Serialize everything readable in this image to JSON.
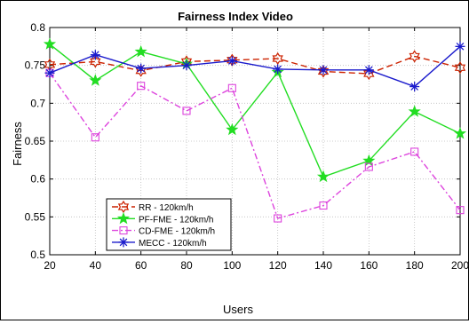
{
  "chart_data": {
    "type": "line",
    "title": "Fairness Index Video",
    "xlabel": "Users",
    "ylabel": "Fairness",
    "x": [
      20,
      40,
      60,
      80,
      100,
      120,
      140,
      160,
      180,
      200
    ],
    "xlim": [
      20,
      200
    ],
    "ylim": [
      0.5,
      0.8
    ],
    "xticks": [
      "20",
      "40",
      "60",
      "80",
      "100",
      "120",
      "140",
      "160",
      "180",
      "200"
    ],
    "yticks": [
      "0.5",
      "0.55",
      "0.6",
      "0.65",
      "0.7",
      "0.75",
      "0.8"
    ],
    "grid": true,
    "legend_position": "bottom-left",
    "series": [
      {
        "name": "RR - 120km/h",
        "color": "#cc2200",
        "dash": "dash",
        "marker": "hexagram",
        "values": [
          0.751,
          0.755,
          0.743,
          0.755,
          0.757,
          0.759,
          0.742,
          0.739,
          0.762,
          0.747
        ]
      },
      {
        "name": "PF-FME - 120km/h",
        "color": "#22dd22",
        "dash": "solid",
        "marker": "pentagram",
        "values": [
          0.778,
          0.73,
          0.768,
          0.752,
          0.665,
          0.741,
          0.603,
          0.624,
          0.689,
          0.66
        ]
      },
      {
        "name": "CD-FME - 120km/h",
        "color": "#dd44dd",
        "dash": "dashdot",
        "marker": "square",
        "values": [
          0.74,
          0.655,
          0.723,
          0.69,
          0.72,
          0.548,
          0.565,
          0.616,
          0.636,
          0.559
        ]
      },
      {
        "name": "MECC - 120km/h",
        "color": "#1a1acc",
        "dash": "solid",
        "marker": "asterisk",
        "values": [
          0.74,
          0.764,
          0.746,
          0.75,
          0.756,
          0.745,
          0.744,
          0.744,
          0.722,
          0.775
        ]
      }
    ]
  }
}
